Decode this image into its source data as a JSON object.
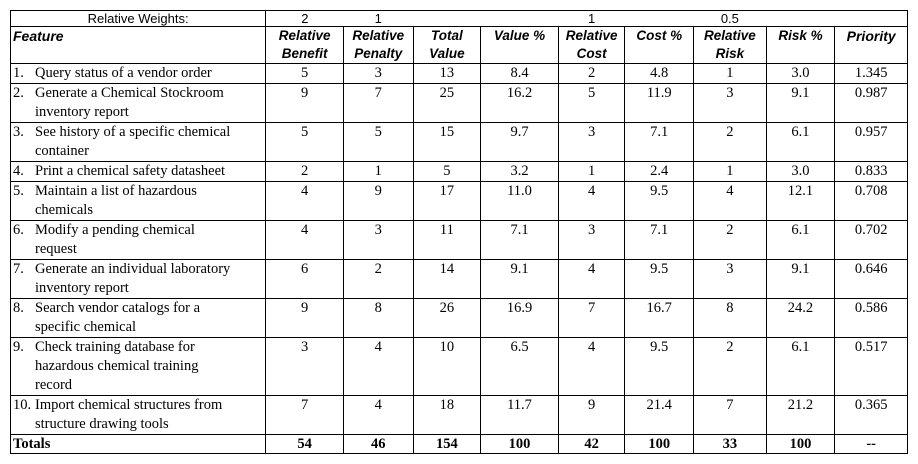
{
  "weights_label": "Relative Weights:",
  "weights": {
    "benefit": "2",
    "penalty": "1",
    "cost": "1",
    "risk": "0.5"
  },
  "headers": {
    "feature": "Feature",
    "benefit_1": "Relative",
    "benefit_2": "Benefit",
    "penalty_1": "Relative",
    "penalty_2": "Penalty",
    "total_1": "Total",
    "total_2": "Value",
    "value_pct": "Value %",
    "cost_1": "Relative",
    "cost_2": "Cost",
    "cost_pct": "Cost %",
    "risk_1": "Relative",
    "risk_2": "Risk",
    "risk_pct": "Risk %",
    "priority": "Priority"
  },
  "rows": [
    {
      "num": "1.",
      "line1": "Query status of a vendor order",
      "line2": "",
      "line3": "",
      "benefit": "5",
      "penalty": "3",
      "total": "13",
      "value_pct": "8.4",
      "cost": "2",
      "cost_pct": "4.8",
      "risk": "1",
      "risk_pct": "3.0",
      "priority": "1.345"
    },
    {
      "num": "2.",
      "line1": "Generate a Chemical Stockroom",
      "line2": "inventory report",
      "line3": "",
      "benefit": "9",
      "penalty": "7",
      "total": "25",
      "value_pct": "16.2",
      "cost": "5",
      "cost_pct": "11.9",
      "risk": "3",
      "risk_pct": "9.1",
      "priority": "0.987"
    },
    {
      "num": "3.",
      "line1": "See history of a specific chemical",
      "line2": "container",
      "line3": "",
      "benefit": "5",
      "penalty": "5",
      "total": "15",
      "value_pct": "9.7",
      "cost": "3",
      "cost_pct": "7.1",
      "risk": "2",
      "risk_pct": "6.1",
      "priority": "0.957"
    },
    {
      "num": "4.",
      "line1": "Print a chemical safety datasheet",
      "line2": "",
      "line3": "",
      "benefit": "2",
      "penalty": "1",
      "total": "5",
      "value_pct": "3.2",
      "cost": "1",
      "cost_pct": "2.4",
      "risk": "1",
      "risk_pct": "3.0",
      "priority": "0.833"
    },
    {
      "num": "5.",
      "line1": "Maintain a list of hazardous",
      "line2": "chemicals",
      "line3": "",
      "benefit": "4",
      "penalty": "9",
      "total": "17",
      "value_pct": "11.0",
      "cost": "4",
      "cost_pct": "9.5",
      "risk": "4",
      "risk_pct": "12.1",
      "priority": "0.708"
    },
    {
      "num": "6.",
      "line1": "Modify a pending chemical",
      "line2": "request",
      "line3": "",
      "benefit": "4",
      "penalty": "3",
      "total": "11",
      "value_pct": "7.1",
      "cost": "3",
      "cost_pct": "7.1",
      "risk": "2",
      "risk_pct": "6.1",
      "priority": "0.702"
    },
    {
      "num": "7.",
      "line1": "Generate an individual laboratory",
      "line2": "inventory report",
      "line3": "",
      "benefit": "6",
      "penalty": "2",
      "total": "14",
      "value_pct": "9.1",
      "cost": "4",
      "cost_pct": "9.5",
      "risk": "3",
      "risk_pct": "9.1",
      "priority": "0.646"
    },
    {
      "num": "8.",
      "line1": "Search vendor catalogs for a",
      "line2": "specific chemical",
      "line3": "",
      "benefit": "9",
      "penalty": "8",
      "total": "26",
      "value_pct": "16.9",
      "cost": "7",
      "cost_pct": "16.7",
      "risk": "8",
      "risk_pct": "24.2",
      "priority": "0.586"
    },
    {
      "num": "9.",
      "line1": "Check training database for",
      "line2": "hazardous chemical training",
      "line3": "record",
      "benefit": "3",
      "penalty": "4",
      "total": "10",
      "value_pct": "6.5",
      "cost": "4",
      "cost_pct": "9.5",
      "risk": "2",
      "risk_pct": "6.1",
      "priority": "0.517"
    },
    {
      "num": "10.",
      "line1": "Import chemical structures from",
      "line2": "structure drawing tools",
      "line3": "",
      "benefit": "7",
      "penalty": "4",
      "total": "18",
      "value_pct": "11.7",
      "cost": "9",
      "cost_pct": "21.4",
      "risk": "7",
      "risk_pct": "21.2",
      "priority": "0.365"
    }
  ],
  "totals": {
    "label": "Totals",
    "benefit": "54",
    "penalty": "46",
    "total": "154",
    "value_pct": "100",
    "cost": "42",
    "cost_pct": "100",
    "risk": "33",
    "risk_pct": "100",
    "priority": "--"
  }
}
